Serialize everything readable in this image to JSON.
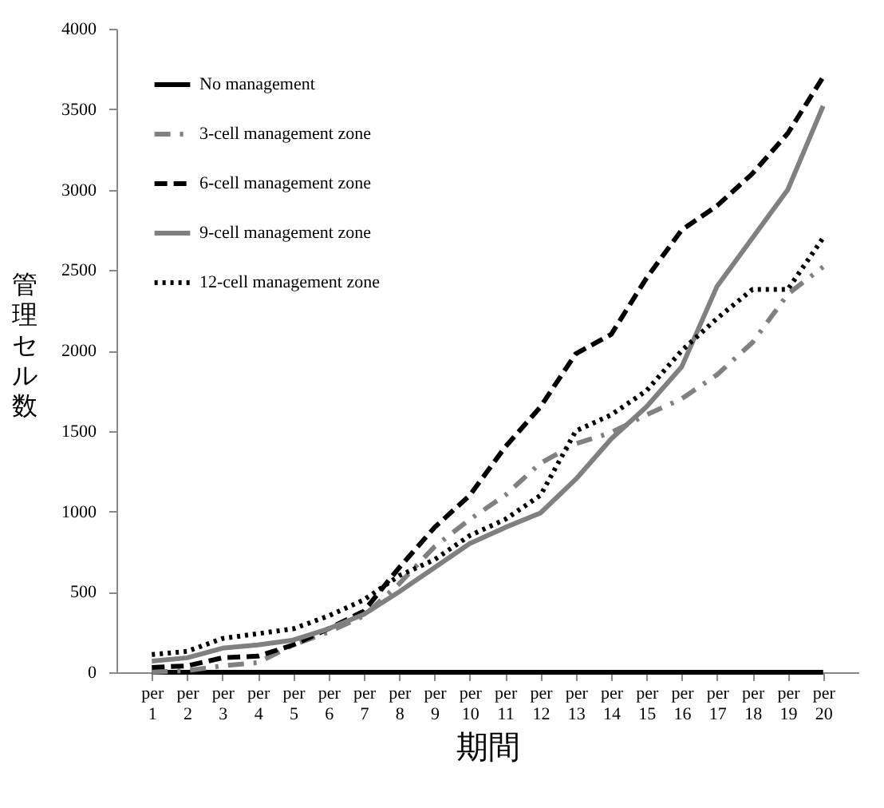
{
  "chart_data": {
    "type": "line",
    "xlabel": "期間",
    "ylabel": "管理セル数",
    "categories": [
      "per 1",
      "per 2",
      "per 3",
      "per 4",
      "per 5",
      "per 6",
      "per 7",
      "per 8",
      "per 9",
      "per 10",
      "per 11",
      "per 12",
      "per 13",
      "per 14",
      "per 15",
      "per 16",
      "per 17",
      "per 18",
      "per 19",
      "per 20"
    ],
    "series": [
      {
        "name": "No management",
        "color": "#000000",
        "line_style": "solid",
        "values": [
          0,
          0,
          0,
          0,
          0,
          0,
          0,
          0,
          0,
          0,
          0,
          0,
          0,
          0,
          0,
          0,
          0,
          0,
          0,
          0
        ]
      },
      {
        "name": "3-cell management zone",
        "color": "#808080",
        "line_style": "dashdot",
        "values": [
          0,
          10,
          40,
          60,
          170,
          250,
          350,
          550,
          780,
          950,
          1100,
          1300,
          1420,
          1490,
          1600,
          1700,
          1850,
          2050,
          2350,
          2520
        ]
      },
      {
        "name": "6-cell management zone",
        "color": "#000000",
        "line_style": "dashed",
        "values": [
          30,
          40,
          90,
          100,
          170,
          270,
          380,
          650,
          900,
          1100,
          1400,
          1650,
          1980,
          2100,
          2450,
          2750,
          2900,
          3100,
          3350,
          3700
        ]
      },
      {
        "name": "9-cell management zone",
        "color": "#808080",
        "line_style": "solid",
        "values": [
          70,
          90,
          150,
          170,
          200,
          270,
          360,
          500,
          650,
          800,
          900,
          990,
          1200,
          1450,
          1650,
          1900,
          2400,
          2700,
          3000,
          3520
        ]
      },
      {
        "name": "12-cell management zone",
        "color": "#000000",
        "line_style": "dotted",
        "values": [
          110,
          130,
          210,
          240,
          270,
          350,
          450,
          600,
          700,
          850,
          950,
          1100,
          1500,
          1600,
          1750,
          2000,
          2200,
          2380,
          2380,
          2700
        ]
      }
    ],
    "ylim": [
      0,
      4000
    ],
    "yticks": [
      0,
      500,
      1000,
      1500,
      2000,
      2500,
      3000,
      3500,
      4000
    ],
    "grid": false,
    "legend": "top left",
    "marker": "none"
  }
}
